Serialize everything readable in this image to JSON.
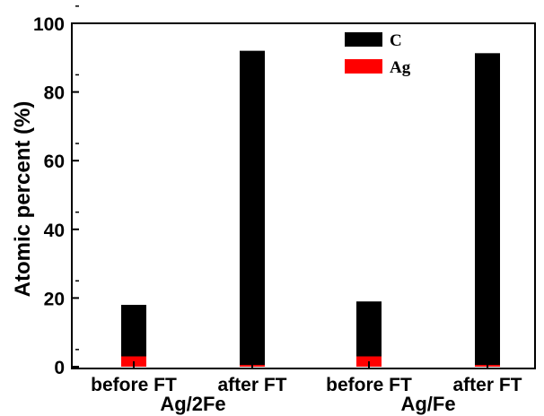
{
  "chart_data": {
    "type": "bar",
    "stacked": true,
    "categories": [
      "before FT",
      "after FT",
      "before FT",
      "after FT"
    ],
    "groups": [
      {
        "label": "Ag/2Fe",
        "categories": [
          0,
          1
        ]
      },
      {
        "label": "Ag/Fe",
        "categories": [
          2,
          3
        ]
      }
    ],
    "series": [
      {
        "name": "Ag",
        "values": [
          3,
          0.5,
          3,
          0.5
        ],
        "color": "#ff0000"
      },
      {
        "name": "C",
        "values": [
          15,
          91.5,
          16,
          90.8
        ],
        "color": "#000000"
      }
    ],
    "ylabel": "Atomic percent (%)",
    "yticks": [
      "0",
      "20",
      "40",
      "60",
      "80",
      "100"
    ],
    "ylim": [
      0,
      100
    ],
    "grid": false,
    "legend": {
      "position": "top-right",
      "entries": [
        {
          "label": "C",
          "color": "#000000"
        },
        {
          "label": "Ag",
          "color": "#ff0000"
        }
      ]
    }
  }
}
